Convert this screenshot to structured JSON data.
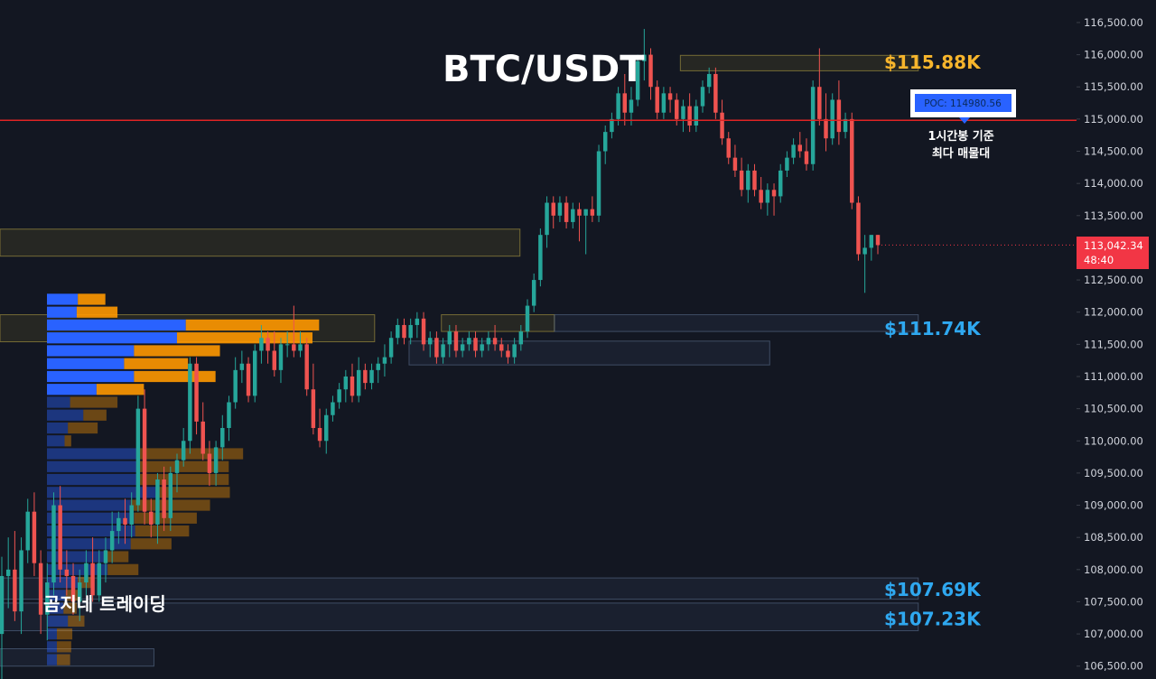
{
  "chart_data": {
    "type": "candlestick",
    "title": "BTC/USDT",
    "watermark": "곰지네 트레이딩",
    "ylim": [
      106300,
      116850
    ],
    "y_ticks": [
      106500,
      107000,
      107500,
      108000,
      108500,
      109000,
      109500,
      110000,
      110500,
      111000,
      111500,
      112000,
      112500,
      113000,
      113500,
      114000,
      114500,
      115000,
      115500,
      116000,
      116500
    ],
    "y_tick_labels": [
      "106,500.00",
      "107,000.00",
      "107,500.00",
      "108,000.00",
      "108,500.00",
      "109,000.00",
      "109,500.00",
      "110,000.00",
      "110,500.00",
      "111,000.00",
      "111,500.00",
      "112,000.00",
      "112,500.00",
      "113,000.00",
      "113,500.00",
      "114,000.00",
      "114,500.00",
      "115,000.00",
      "115,500.00",
      "116,000.00",
      "116,500.00"
    ],
    "current_price": 113042.34,
    "current_price_label": "113,042.34",
    "countdown": "48:40",
    "poc": {
      "price": 114980.56,
      "label": "POC: 114980.56",
      "note_line1": "1시간봉 기준",
      "note_line2": "최다 매물대"
    },
    "levels": [
      {
        "label": "$115.88K",
        "price": 115880,
        "color": "#f7b52c"
      },
      {
        "label": "$111.74K",
        "price": 111740,
        "color": "#2fa8f0"
      },
      {
        "label": "$107.69K",
        "price": 107690,
        "color": "#2fa8f0"
      },
      {
        "label": "$107.23K",
        "price": 107230,
        "color": "#2fa8f0"
      }
    ],
    "zones": [
      {
        "kind": "supply",
        "top": 115990,
        "bottom": 115750,
        "start": 0.632,
        "end": 0.853
      },
      {
        "kind": "supply",
        "top": 113290,
        "bottom": 112870,
        "start": 0.0,
        "end": 0.483
      },
      {
        "kind": "supply",
        "top": 111960,
        "bottom": 111540,
        "start": 0.0,
        "end": 0.348
      },
      {
        "kind": "supply",
        "top": 111960,
        "bottom": 111700,
        "start": 0.41,
        "end": 0.515
      },
      {
        "kind": "demand",
        "top": 111960,
        "bottom": 111700,
        "start": 0.515,
        "end": 0.853
      },
      {
        "kind": "demand",
        "top": 111550,
        "bottom": 111180,
        "start": 0.38,
        "end": 0.715
      },
      {
        "kind": "demand",
        "top": 107870,
        "bottom": 107540,
        "start": 0.0,
        "end": 0.853
      },
      {
        "kind": "demand",
        "top": 107480,
        "bottom": 107050,
        "start": 0.0,
        "end": 0.853
      },
      {
        "kind": "demand",
        "top": 106770,
        "bottom": 106500,
        "start": 0.0,
        "end": 0.143
      }
    ],
    "volume_profile": {
      "price_start": 106500,
      "bucket_size": 200,
      "buy_color": "#2962ff",
      "sell_color": "#ff9800",
      "buy": [
        0.9,
        0.9,
        0.9,
        1.9,
        1.5,
        1.7,
        2.8,
        5.5,
        5.2,
        7.6,
        8.0,
        7.9,
        7.6,
        10.1,
        8.4,
        8.4,
        8.4,
        1.6,
        1.9,
        3.3,
        2.1,
        4.5,
        7.9,
        7.0,
        7.9,
        11.8,
        12.6,
        2.7,
        2.8
      ],
      "sell": [
        1.2,
        1.3,
        1.4,
        1.5,
        1.2,
        1.3,
        1.3,
        2.8,
        2.2,
        3.7,
        4.9,
        5.7,
        7.2,
        6.5,
        8.1,
        8.1,
        9.4,
        0.6,
        2.7,
        2.1,
        4.3,
        4.3,
        7.4,
        5.8,
        7.8,
        12.3,
        12.1,
        3.7,
        2.5
      ],
      "faded_below": 110700
    },
    "candles": [
      [
        107000,
        108200,
        106300,
        107900
      ],
      [
        107900,
        108500,
        107400,
        108000
      ],
      [
        108000,
        108600,
        107200,
        107350
      ],
      [
        107350,
        108500,
        107000,
        108300
      ],
      [
        108300,
        109100,
        108100,
        108900
      ],
      [
        108900,
        109200,
        107900,
        108100
      ],
      [
        108100,
        108300,
        107000,
        107300
      ],
      [
        107300,
        108100,
        106900,
        107800
      ],
      [
        107800,
        109200,
        107600,
        109000
      ],
      [
        109000,
        109300,
        107800,
        108000
      ],
      [
        108000,
        108300,
        107600,
        107900
      ],
      [
        107900,
        108100,
        107300,
        107500
      ],
      [
        107500,
        108000,
        107200,
        107800
      ],
      [
        107800,
        108300,
        107600,
        108100
      ],
      [
        108100,
        108500,
        107500,
        107600
      ],
      [
        107600,
        108300,
        107500,
        108100
      ],
      [
        108100,
        108500,
        107800,
        108300
      ],
      [
        108300,
        108900,
        108100,
        108600
      ],
      [
        108600,
        108900,
        108400,
        108800
      ],
      [
        108800,
        109100,
        108400,
        108700
      ],
      [
        108700,
        109200,
        108500,
        109000
      ],
      [
        109000,
        110700,
        108900,
        110500
      ],
      [
        110500,
        110800,
        108700,
        108900
      ],
      [
        108900,
        109100,
        108500,
        108700
      ],
      [
        108700,
        109500,
        108400,
        109400
      ],
      [
        109400,
        109600,
        108600,
        108800
      ],
      [
        108800,
        109600,
        108600,
        109500
      ],
      [
        109500,
        109800,
        109200,
        109700
      ],
      [
        109700,
        110200,
        109600,
        110000
      ],
      [
        110000,
        111300,
        109800,
        111200
      ],
      [
        111200,
        111300,
        110100,
        110300
      ],
      [
        110300,
        110600,
        109700,
        109800
      ],
      [
        109800,
        110000,
        109300,
        109500
      ],
      [
        109500,
        110000,
        109300,
        109900
      ],
      [
        109900,
        110400,
        109700,
        110200
      ],
      [
        110200,
        110700,
        110000,
        110600
      ],
      [
        110600,
        111300,
        110500,
        111100
      ],
      [
        111100,
        111400,
        110900,
        111200
      ],
      [
        111200,
        111300,
        110600,
        110700
      ],
      [
        110700,
        111500,
        110600,
        111400
      ],
      [
        111400,
        111800,
        111200,
        111600
      ],
      [
        111600,
        111700,
        111200,
        111400
      ],
      [
        111400,
        111700,
        111000,
        111100
      ],
      [
        111100,
        111600,
        110900,
        111500
      ],
      [
        111500,
        111700,
        111300,
        111500
      ],
      [
        111500,
        112100,
        111300,
        111400
      ],
      [
        111400,
        111700,
        111300,
        111500
      ],
      [
        111500,
        111600,
        110700,
        110800
      ],
      [
        110800,
        111200,
        110100,
        110200
      ],
      [
        110200,
        110500,
        109900,
        110000
      ],
      [
        110000,
        110500,
        109800,
        110400
      ],
      [
        110400,
        110700,
        110300,
        110600
      ],
      [
        110600,
        110900,
        110500,
        110800
      ],
      [
        110800,
        111100,
        110600,
        111000
      ],
      [
        111000,
        111200,
        110600,
        110700
      ],
      [
        110700,
        111300,
        110600,
        111100
      ],
      [
        111100,
        111200,
        110800,
        110900
      ],
      [
        110900,
        111200,
        110800,
        111100
      ],
      [
        111100,
        111300,
        110900,
        111200
      ],
      [
        111200,
        111500,
        111000,
        111300
      ],
      [
        111300,
        111700,
        111200,
        111600
      ],
      [
        111600,
        111900,
        111500,
        111800
      ],
      [
        111800,
        111900,
        111500,
        111600
      ],
      [
        111600,
        111900,
        111500,
        111800
      ],
      [
        111800,
        112000,
        111600,
        111900
      ],
      [
        111900,
        112000,
        111400,
        111500
      ],
      [
        111500,
        111700,
        111300,
        111600
      ],
      [
        111600,
        111700,
        111200,
        111300
      ],
      [
        111300,
        111600,
        111200,
        111500
      ],
      [
        111500,
        111800,
        111300,
        111700
      ],
      [
        111700,
        111800,
        111300,
        111400
      ],
      [
        111400,
        111600,
        111300,
        111500
      ],
      [
        111500,
        111700,
        111400,
        111600
      ],
      [
        111600,
        111700,
        111300,
        111400
      ],
      [
        111400,
        111600,
        111300,
        111500
      ],
      [
        111500,
        111700,
        111400,
        111600
      ],
      [
        111600,
        111800,
        111400,
        111500
      ],
      [
        111500,
        111600,
        111300,
        111400
      ],
      [
        111400,
        111500,
        111200,
        111300
      ],
      [
        111300,
        111600,
        111200,
        111500
      ],
      [
        111500,
        111800,
        111400,
        111700
      ],
      [
        111700,
        112200,
        111600,
        112100
      ],
      [
        112100,
        112600,
        112000,
        112500
      ],
      [
        112500,
        113300,
        112400,
        113200
      ],
      [
        113200,
        113800,
        113000,
        113700
      ],
      [
        113700,
        113800,
        113300,
        113500
      ],
      [
        113500,
        113800,
        113400,
        113700
      ],
      [
        113700,
        113800,
        113300,
        113400
      ],
      [
        113400,
        113700,
        113300,
        113600
      ],
      [
        113600,
        113700,
        113100,
        113500
      ],
      [
        113500,
        113600,
        112900,
        113600
      ],
      [
        113600,
        113800,
        113400,
        113500
      ],
      [
        113500,
        114600,
        113400,
        114500
      ],
      [
        114500,
        114900,
        114300,
        114800
      ],
      [
        114800,
        115100,
        114700,
        115000
      ],
      [
        115000,
        115500,
        114900,
        115400
      ],
      [
        115400,
        115700,
        114900,
        115100
      ],
      [
        115100,
        115500,
        114900,
        115300
      ],
      [
        115300,
        116000,
        115200,
        115900
      ],
      [
        115900,
        116400,
        115600,
        116000
      ],
      [
        116000,
        116100,
        115300,
        115500
      ],
      [
        115500,
        115600,
        115000,
        115100
      ],
      [
        115100,
        115500,
        115000,
        115400
      ],
      [
        115400,
        115500,
        115100,
        115300
      ],
      [
        115300,
        115400,
        114900,
        115000
      ],
      [
        115000,
        115300,
        114800,
        115200
      ],
      [
        115200,
        115400,
        114800,
        114900
      ],
      [
        114900,
        115300,
        114800,
        115200
      ],
      [
        115200,
        115600,
        115100,
        115500
      ],
      [
        115500,
        115800,
        115400,
        115700
      ],
      [
        115700,
        115800,
        115000,
        115100
      ],
      [
        115100,
        115300,
        114600,
        114700
      ],
      [
        114700,
        114800,
        114300,
        114400
      ],
      [
        114400,
        114600,
        114100,
        114200
      ],
      [
        114200,
        114400,
        113800,
        113900
      ],
      [
        113900,
        114300,
        113700,
        114200
      ],
      [
        114200,
        114300,
        113800,
        113900
      ],
      [
        113900,
        114100,
        113600,
        113700
      ],
      [
        113700,
        114000,
        113500,
        113900
      ],
      [
        113900,
        114000,
        113500,
        113800
      ],
      [
        113800,
        114300,
        113700,
        114200
      ],
      [
        114200,
        114500,
        114100,
        114400
      ],
      [
        114400,
        114700,
        114300,
        114600
      ],
      [
        114600,
        114800,
        114400,
        114500
      ],
      [
        114500,
        114700,
        114200,
        114300
      ],
      [
        114300,
        115600,
        114200,
        115500
      ],
      [
        115500,
        116100,
        114900,
        115000
      ],
      [
        115000,
        115400,
        114500,
        114700
      ],
      [
        114700,
        115400,
        114600,
        115300
      ],
      [
        115300,
        115600,
        114600,
        114800
      ],
      [
        114800,
        115100,
        114700,
        115000
      ],
      [
        115000,
        115100,
        113600,
        113700
      ],
      [
        113700,
        113800,
        112800,
        112900
      ],
      [
        112900,
        113200,
        112300,
        113000
      ],
      [
        113000,
        113200,
        112800,
        113200
      ],
      [
        113200,
        113200,
        112900,
        113042
      ]
    ]
  }
}
